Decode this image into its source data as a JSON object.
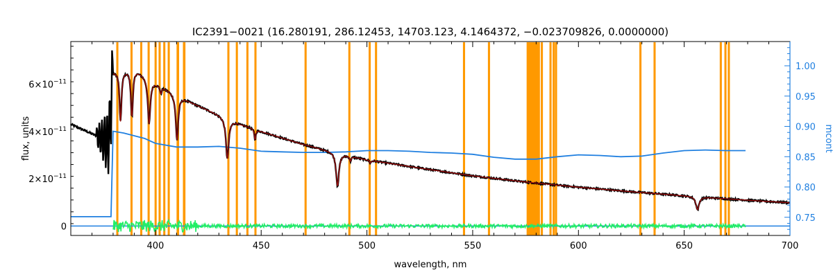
{
  "chart_data": {
    "type": "line",
    "title": "IC2391−0021    (16.280191, 286.12453, 14703.123, 4.1464372, −0.023709826, 0.0000000)",
    "xlabel": "wavelength, nm",
    "ylabel": "flux, units",
    "y2label": "mcont",
    "xlim": [
      360,
      700
    ],
    "ylim": [
      -4e-12,
      7.8e-11
    ],
    "y2lim": [
      0.72,
      1.04
    ],
    "x_ticks": [
      400,
      450,
      500,
      550,
      600,
      650,
      700
    ],
    "x_tick_labels": [
      "400",
      "450",
      "500",
      "550",
      "600",
      "650",
      "700"
    ],
    "y_ticks": [
      0,
      2e-11,
      4e-11,
      6e-11
    ],
    "y_tick_labels": [
      {
        "mantissa": "0",
        "exp": ""
      },
      {
        "mantissa": "2×10",
        "exp": "−11"
      },
      {
        "mantissa": "4×10",
        "exp": "−11"
      },
      {
        "mantissa": "6×10",
        "exp": "−11"
      }
    ],
    "y2_ticks": [
      0.75,
      0.8,
      0.85,
      0.9,
      0.95,
      1.0
    ],
    "y2_tick_labels": [
      "0.75",
      "0.80",
      "0.85",
      "0.90",
      "0.95",
      "1.00"
    ],
    "colors": {
      "observed": "#000000",
      "model": "#a01010",
      "continuum": "#1f7fe0",
      "residual": "#22ee66",
      "mask": "#ff9900",
      "highlight": "#ffee00",
      "right_axis": "#1f7fe0"
    },
    "mask_regions": [
      [
        381.5,
        382.5
      ],
      [
        388.2,
        389.2
      ],
      [
        392.8,
        393.8
      ],
      [
        396.3,
        397.3
      ],
      [
        399.6,
        400.6
      ],
      [
        401.5,
        402.5
      ],
      [
        403.7,
        404.7
      ],
      [
        405.8,
        406.8
      ],
      [
        410.0,
        411.2
      ],
      [
        413.0,
        414.2
      ],
      [
        434.0,
        435.0
      ],
      [
        438.0,
        439.0
      ],
      [
        443.0,
        444.0
      ],
      [
        446.8,
        447.8
      ],
      [
        470.5,
        471.5
      ],
      [
        491.2,
        492.2
      ],
      [
        500.8,
        501.8
      ],
      [
        503.8,
        504.8
      ],
      [
        545.4,
        546.4
      ],
      [
        557.2,
        558.2
      ],
      [
        575.5,
        581.8
      ],
      [
        582.2,
        583.2
      ],
      [
        586.3,
        587.3
      ],
      [
        587.8,
        588.8
      ],
      [
        588.9,
        589.9
      ],
      [
        628.8,
        629.8
      ],
      [
        635.5,
        636.5
      ],
      [
        666.8,
        667.8
      ],
      [
        669.0,
        670.0
      ],
      [
        670.6,
        671.6
      ]
    ],
    "lines": [
      {
        "center": 486.1,
        "depth": 1.4e-11,
        "width": 0.8
      },
      {
        "center": 434.0,
        "depth": 1.7e-11,
        "width": 0.8
      },
      {
        "center": 410.2,
        "depth": 1.9e-11,
        "width": 0.7
      },
      {
        "center": 397.0,
        "depth": 1.9e-11,
        "width": 0.7
      },
      {
        "center": 388.9,
        "depth": 2e-11,
        "width": 0.6
      },
      {
        "center": 383.5,
        "depth": 2.1e-11,
        "width": 0.55
      },
      {
        "center": 656.3,
        "depth": 5.5e-12,
        "width": 0.9
      },
      {
        "center": 447.1,
        "depth": 4.5e-12,
        "width": 0.4
      },
      {
        "center": 402.6,
        "depth": 3e-12,
        "width": 0.4
      },
      {
        "center": 492.2,
        "depth": 2e-12,
        "width": 0.4
      },
      {
        "center": 501.6,
        "depth": 1.2e-12,
        "width": 0.4
      }
    ],
    "continuum_points": [
      [
        360,
        4.3e-11
      ],
      [
        370,
        3.9e-11
      ],
      [
        378,
        3.55e-11
      ],
      [
        380,
        6.5e-11
      ],
      [
        390,
        6.65e-11
      ],
      [
        400,
        6.05e-11
      ],
      [
        410,
        5.55e-11
      ],
      [
        420,
        5.1e-11
      ],
      [
        430,
        4.7e-11
      ],
      [
        440,
        4.32e-11
      ],
      [
        450,
        4e-11
      ],
      [
        460,
        3.72e-11
      ],
      [
        470,
        3.45e-11
      ],
      [
        480,
        3.22e-11
      ],
      [
        490,
        3e-11
      ],
      [
        500,
        2.8e-11
      ],
      [
        525,
        2.45e-11
      ],
      [
        550,
        2.12e-11
      ],
      [
        575,
        1.86e-11
      ],
      [
        600,
        1.64e-11
      ],
      [
        625,
        1.45e-11
      ],
      [
        650,
        1.28e-11
      ],
      [
        675,
        1.12e-11
      ],
      [
        700,
        9.8e-12
      ]
    ],
    "mcont_points": [
      [
        360,
        0.751
      ],
      [
        379,
        0.751
      ],
      [
        380,
        0.892
      ],
      [
        385,
        0.889
      ],
      [
        395,
        0.88
      ],
      [
        400,
        0.872
      ],
      [
        410,
        0.866
      ],
      [
        420,
        0.866
      ],
      [
        430,
        0.867
      ],
      [
        440,
        0.864
      ],
      [
        450,
        0.859
      ],
      [
        460,
        0.858
      ],
      [
        470,
        0.857
      ],
      [
        480,
        0.857
      ],
      [
        490,
        0.858
      ],
      [
        500,
        0.86
      ],
      [
        510,
        0.86
      ],
      [
        520,
        0.859
      ],
      [
        530,
        0.857
      ],
      [
        540,
        0.856
      ],
      [
        550,
        0.854
      ],
      [
        560,
        0.849
      ],
      [
        570,
        0.846
      ],
      [
        580,
        0.846
      ],
      [
        590,
        0.85
      ],
      [
        600,
        0.853
      ],
      [
        610,
        0.852
      ],
      [
        620,
        0.85
      ],
      [
        630,
        0.851
      ],
      [
        640,
        0.856
      ],
      [
        650,
        0.86
      ],
      [
        660,
        0.861
      ],
      [
        670,
        0.86
      ],
      [
        679,
        0.86
      ]
    ],
    "model_range": [
      380,
      700
    ],
    "residual_range": [
      380,
      679
    ]
  }
}
